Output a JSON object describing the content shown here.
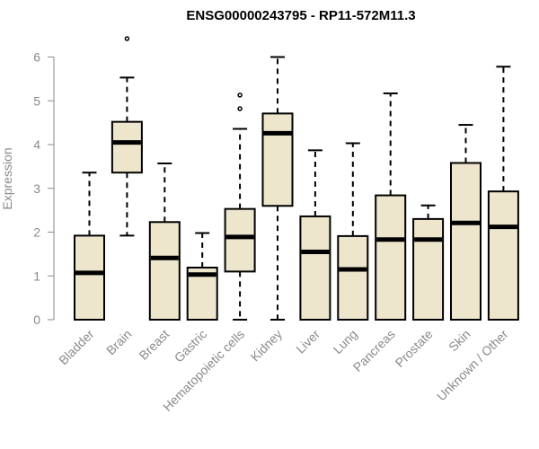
{
  "chart_data": {
    "type": "boxplot",
    "title": "ENSG00000243795 - RP11-572M11.3",
    "xlabel": "",
    "ylabel": "Expression",
    "ylim": [
      0,
      6
    ],
    "yticks": [
      0,
      1,
      2,
      3,
      4,
      5,
      6
    ],
    "grid": false,
    "box_color": "#ede6cc",
    "categories": [
      "Bladder",
      "Brain",
      "Breast",
      "Gastric",
      "Hematopoietic cells",
      "Kidney",
      "Liver",
      "Lung",
      "Pancreas",
      "Prostate",
      "Skin",
      "Unknown / Other"
    ],
    "boxes": [
      {
        "min": 0,
        "q1": 0,
        "median": 1.07,
        "q3": 1.92,
        "max": 3.36,
        "outliers": []
      },
      {
        "min": 1.92,
        "q1": 3.36,
        "median": 4.05,
        "q3": 4.52,
        "max": 5.53,
        "outliers": [
          6.42
        ]
      },
      {
        "min": 0,
        "q1": 0,
        "median": 1.41,
        "q3": 2.23,
        "max": 3.57,
        "outliers": []
      },
      {
        "min": 0,
        "q1": 0,
        "median": 1.03,
        "q3": 1.19,
        "max": 1.98,
        "outliers": []
      },
      {
        "min": 0,
        "q1": 1.1,
        "median": 1.89,
        "q3": 2.53,
        "max": 4.36,
        "outliers": [
          4.82,
          5.13
        ]
      },
      {
        "min": 0,
        "q1": 2.6,
        "median": 4.26,
        "q3": 4.71,
        "max": 6.0,
        "outliers": []
      },
      {
        "min": 0,
        "q1": 0,
        "median": 1.55,
        "q3": 2.36,
        "max": 3.87,
        "outliers": []
      },
      {
        "min": 0,
        "q1": 0,
        "median": 1.15,
        "q3": 1.91,
        "max": 4.03,
        "outliers": []
      },
      {
        "min": 0,
        "q1": 0,
        "median": 1.83,
        "q3": 2.84,
        "max": 5.17,
        "outliers": []
      },
      {
        "min": 0,
        "q1": 0,
        "median": 1.83,
        "q3": 2.3,
        "max": 2.61,
        "outliers": []
      },
      {
        "min": 0,
        "q1": 0,
        "median": 2.21,
        "q3": 3.58,
        "max": 4.45,
        "outliers": []
      },
      {
        "min": 0,
        "q1": 0,
        "median": 2.12,
        "q3": 2.93,
        "max": 5.78,
        "outliers": []
      }
    ]
  }
}
